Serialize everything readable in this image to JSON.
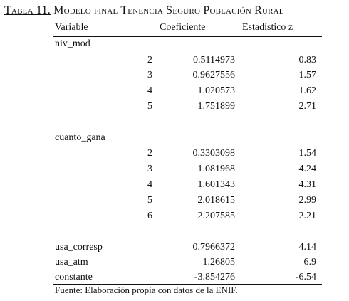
{
  "title": {
    "prefix": "Tabla 11.",
    "rest": " Modelo final Tenencia Seguro Población Rural"
  },
  "headers": {
    "variable": "Variable",
    "coeficiente": "Coeficiente",
    "estadistico": "Estadístico z"
  },
  "groups": [
    {
      "name": "niv_mod",
      "rows": [
        {
          "cat": "2",
          "coef": "0.5114973",
          "z": "0.83"
        },
        {
          "cat": "3",
          "coef": "0.9627556",
          "z": "1.57"
        },
        {
          "cat": "4",
          "coef": "1.020573",
          "z": "1.62"
        },
        {
          "cat": "5",
          "coef": "1.751899",
          "z": "2.71"
        }
      ]
    },
    {
      "name": "cuanto_gana",
      "rows": [
        {
          "cat": "2",
          "coef": "0.3303098",
          "z": "1.54"
        },
        {
          "cat": "3",
          "coef": "1.081968",
          "z": "4.24"
        },
        {
          "cat": "4",
          "coef": "1.601343",
          "z": "4.31"
        },
        {
          "cat": "5",
          "coef": "2.018615",
          "z": "2.99"
        },
        {
          "cat": "6",
          "coef": "2.207585",
          "z": "2.21"
        }
      ]
    }
  ],
  "single_rows": [
    {
      "name": "usa_corresp",
      "coef": "0.7966372",
      "z": "4.14"
    },
    {
      "name": "usa_atm",
      "coef": "1.26805",
      "z": "6.9"
    },
    {
      "name": "constante",
      "coef": "-3.854276",
      "z": "-6.54"
    }
  ],
  "source": "Fuente: Elaboración propia con datos de la ENIF."
}
